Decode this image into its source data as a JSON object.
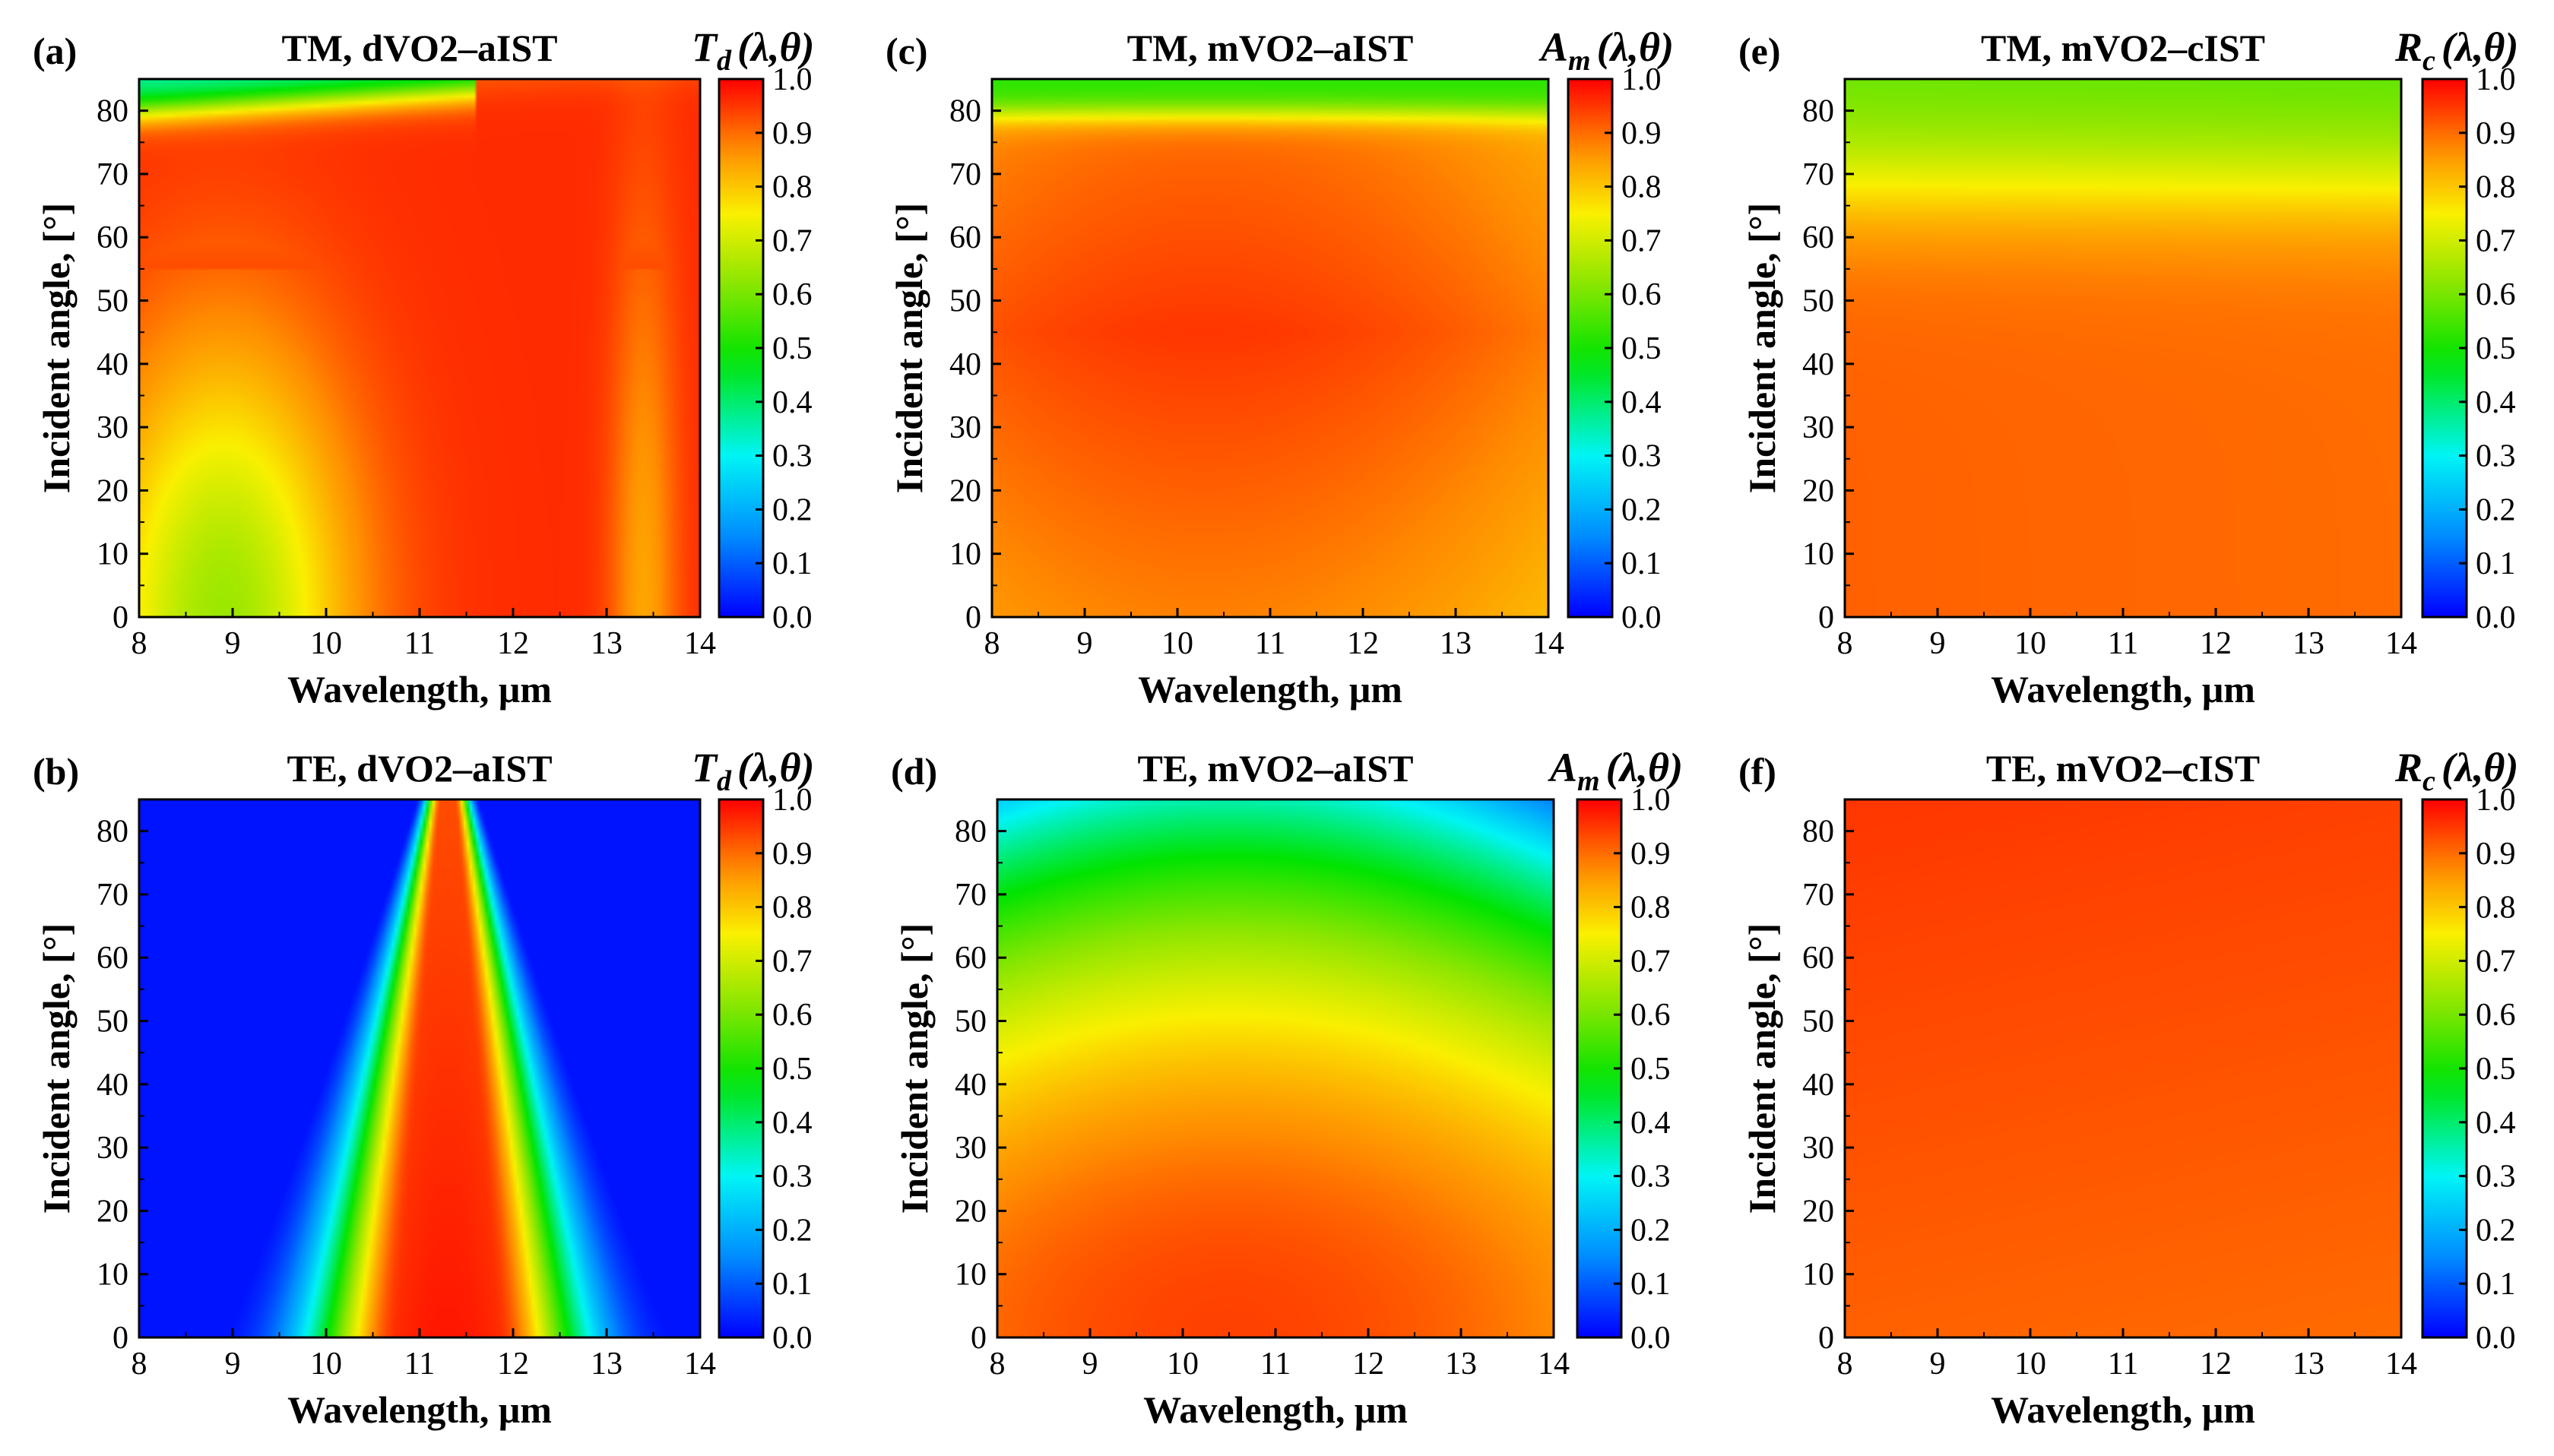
{
  "figure": {
    "kind": "colormap-panel-grid"
  },
  "chart_data": [
    {
      "id": "a",
      "label": "(a)",
      "type": "heatmap",
      "title": "TM, dVO2–aIST",
      "colorbar_symbol": "T",
      "colorbar_sub": "d",
      "colorbar_args": "(λ,θ)",
      "xlabel": "Wavelength, μm",
      "ylabel": "Incident angle, [°]",
      "xlim": [
        8,
        14
      ],
      "ylim": [
        0,
        85
      ],
      "xticks": [
        "8",
        "9",
        "10",
        "11",
        "12",
        "13",
        "14"
      ],
      "yticks": [
        "0",
        "10",
        "20",
        "30",
        "40",
        "50",
        "60",
        "70",
        "80"
      ],
      "clim": [
        0,
        1
      ],
      "cticks": [
        "0.0",
        "0.1",
        "0.2",
        "0.3",
        "0.4",
        "0.5",
        "0.6",
        "0.7",
        "0.8",
        "0.9",
        "1.0"
      ],
      "model": "tm_d"
    },
    {
      "id": "b",
      "label": "(b)",
      "type": "heatmap",
      "title": "TE, dVO2–aIST",
      "colorbar_symbol": "T",
      "colorbar_sub": "d",
      "colorbar_args": "(λ,θ)",
      "xlabel": "Wavelength, μm",
      "ylabel": "Incident angle, [°]",
      "xlim": [
        8,
        14
      ],
      "ylim": [
        0,
        85
      ],
      "xticks": [
        "8",
        "9",
        "10",
        "11",
        "12",
        "13",
        "14"
      ],
      "yticks": [
        "0",
        "10",
        "20",
        "30",
        "40",
        "50",
        "60",
        "70",
        "80"
      ],
      "clim": [
        0,
        1
      ],
      "cticks": [
        "0.0",
        "0.1",
        "0.2",
        "0.3",
        "0.4",
        "0.5",
        "0.6",
        "0.7",
        "0.8",
        "0.9",
        "1.0"
      ],
      "model": "te_d"
    },
    {
      "id": "c",
      "label": "(c)",
      "type": "heatmap",
      "title": "TM, mVO2–aIST",
      "colorbar_symbol": "A",
      "colorbar_sub": "m",
      "colorbar_args": "(λ,θ)",
      "xlabel": "Wavelength, μm",
      "ylabel": "Incident angle, [°]",
      "xlim": [
        8,
        14
      ],
      "ylim": [
        0,
        85
      ],
      "xticks": [
        "8",
        "9",
        "10",
        "11",
        "12",
        "13",
        "14"
      ],
      "yticks": [
        "0",
        "10",
        "20",
        "30",
        "40",
        "50",
        "60",
        "70",
        "80"
      ],
      "clim": [
        0,
        1
      ],
      "cticks": [
        "0.0",
        "0.1",
        "0.2",
        "0.3",
        "0.4",
        "0.5",
        "0.6",
        "0.7",
        "0.8",
        "0.9",
        "1.0"
      ],
      "model": "tm_m"
    },
    {
      "id": "d",
      "label": "(d)",
      "type": "heatmap",
      "title": "TE, mVO2–aIST",
      "colorbar_symbol": "A",
      "colorbar_sub": "m",
      "colorbar_args": "(λ,θ)",
      "xlabel": "Wavelength, μm",
      "ylabel": "Incident angle, [°]",
      "xlim": [
        8,
        14
      ],
      "ylim": [
        0,
        85
      ],
      "xticks": [
        "8",
        "9",
        "10",
        "11",
        "12",
        "13",
        "14"
      ],
      "yticks": [
        "0",
        "10",
        "20",
        "30",
        "40",
        "50",
        "60",
        "70",
        "80"
      ],
      "clim": [
        0,
        1
      ],
      "cticks": [
        "0.0",
        "0.1",
        "0.2",
        "0.3",
        "0.4",
        "0.5",
        "0.6",
        "0.7",
        "0.8",
        "0.9",
        "1.0"
      ],
      "model": "te_m"
    },
    {
      "id": "e",
      "label": "(e)",
      "type": "heatmap",
      "title": "TM, mVO2–cIST",
      "colorbar_symbol": "R",
      "colorbar_sub": "c",
      "colorbar_args": "(λ,θ)",
      "xlabel": "Wavelength, μm",
      "ylabel": "Incident angle, [°]",
      "xlim": [
        8,
        14
      ],
      "ylim": [
        0,
        85
      ],
      "xticks": [
        "8",
        "9",
        "10",
        "11",
        "12",
        "13",
        "14"
      ],
      "yticks": [
        "0",
        "10",
        "20",
        "30",
        "40",
        "50",
        "60",
        "70",
        "80"
      ],
      "clim": [
        0,
        1
      ],
      "cticks": [
        "0.0",
        "0.1",
        "0.2",
        "0.3",
        "0.4",
        "0.5",
        "0.6",
        "0.7",
        "0.8",
        "0.9",
        "1.0"
      ],
      "model": "tm_c"
    },
    {
      "id": "f",
      "label": "(f)",
      "type": "heatmap",
      "title": "TE, mVO2–cIST",
      "colorbar_symbol": "R",
      "colorbar_sub": "c",
      "colorbar_args": "(λ,θ)",
      "xlabel": "Wavelength, μm",
      "ylabel": "Incident angle, [°]",
      "xlim": [
        8,
        14
      ],
      "ylim": [
        0,
        85
      ],
      "xticks": [
        "8",
        "9",
        "10",
        "11",
        "12",
        "13",
        "14"
      ],
      "yticks": [
        "0",
        "10",
        "20",
        "30",
        "40",
        "50",
        "60",
        "70",
        "80"
      ],
      "clim": [
        0,
        1
      ],
      "cticks": [
        "0.0",
        "0.1",
        "0.2",
        "0.3",
        "0.4",
        "0.5",
        "0.6",
        "0.7",
        "0.8",
        "0.9",
        "1.0"
      ],
      "model": "te_c"
    }
  ]
}
